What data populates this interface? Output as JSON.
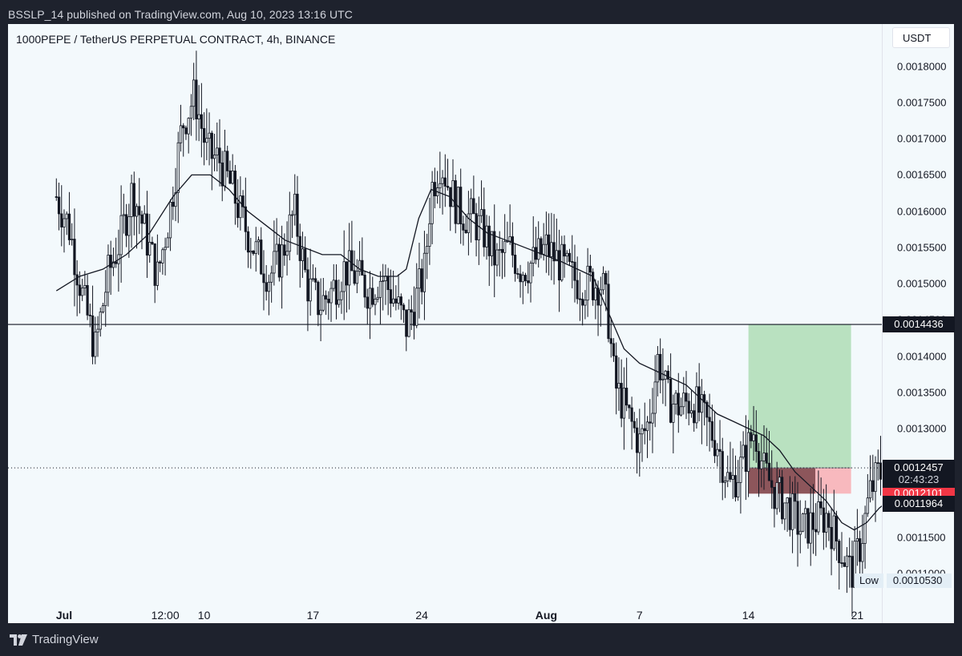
{
  "header": {
    "published_line": "BSSLP_14 published on TradingView.com, Aug 10, 2023 13:16 UTC"
  },
  "chart_data": {
    "type": "candlestick",
    "symbol_line": "1000PEPE / TetherUS PERPETUAL CONTRACT, 4h, BINANCE",
    "currency": "USDT",
    "y_ticks": [
      "0.0018000",
      "0.0017500",
      "0.0017000",
      "0.0016500",
      "0.0016000",
      "0.0015500",
      "0.0015000",
      "0.0014500",
      "0.0014000",
      "0.0013500",
      "0.0013000",
      "0.0012500",
      "0.0012000",
      "0.0011500",
      "0.0011000"
    ],
    "ylim": [
      0.0010313,
      0.0018583
    ],
    "x_ticks": [
      "Jul",
      "12:00",
      "10",
      "17",
      "24",
      "Aug",
      "7",
      "14",
      "21"
    ],
    "x_tick_day_index": [
      0,
      6.5,
      9,
      16,
      23,
      31,
      37,
      44,
      51
    ],
    "horizontal_level": 0.0014436,
    "horizontal_level_label": "0.0014436",
    "last_price_label": "0.0012457",
    "countdown": "02:43:23",
    "stop_price_label": "0.0012101",
    "moving_average_last_label": "0.0011964",
    "low_label": "Low",
    "low_value": "0.0010530",
    "position_tool": {
      "entry": 0.0012457,
      "target": 0.0014436,
      "stop": 0.0012101,
      "start_day": 44.0,
      "end_day": 50.6,
      "progress_end_day": 48.3,
      "target_color": "#b9e1c0",
      "stop_color": "#f8b9be",
      "filled_stop_color": "#8d565b"
    },
    "price_path": [
      [
        -0.5,
        0.00162
      ],
      [
        0.3,
        0.00158
      ],
      [
        1.2,
        0.00148
      ],
      [
        2.0,
        0.00141
      ],
      [
        2.8,
        0.00151
      ],
      [
        3.6,
        0.00156
      ],
      [
        4.4,
        0.00163
      ],
      [
        5.2,
        0.00157
      ],
      [
        6.0,
        0.00151
      ],
      [
        6.8,
        0.0016
      ],
      [
        7.6,
        0.00172
      ],
      [
        8.4,
        0.00176
      ],
      [
        9.2,
        0.00168
      ],
      [
        10.0,
        0.00167
      ],
      [
        10.8,
        0.00163
      ],
      [
        11.6,
        0.00158
      ],
      [
        12.4,
        0.00154
      ],
      [
        13.2,
        0.00151
      ],
      [
        14.0,
        0.00154
      ],
      [
        14.8,
        0.0016
      ],
      [
        15.6,
        0.0015
      ],
      [
        16.4,
        0.00147
      ],
      [
        17.2,
        0.00149
      ],
      [
        18.0,
        0.00152
      ],
      [
        18.8,
        0.00151
      ],
      [
        19.6,
        0.00149
      ],
      [
        20.4,
        0.00151
      ],
      [
        21.2,
        0.00148
      ],
      [
        22.0,
        0.00144
      ],
      [
        22.8,
        0.00149
      ],
      [
        23.2,
        0.00152
      ],
      [
        23.6,
        0.00163
      ],
      [
        24.2,
        0.00167
      ],
      [
        24.8,
        0.00163
      ],
      [
        25.4,
        0.0016
      ],
      [
        26.2,
        0.00159
      ],
      [
        27.0,
        0.00157
      ],
      [
        27.8,
        0.00153
      ],
      [
        28.6,
        0.00155
      ],
      [
        29.4,
        0.00152
      ],
      [
        30.2,
        0.00153
      ],
      [
        31.0,
        0.00155
      ],
      [
        31.8,
        0.00153
      ],
      [
        32.6,
        0.00151
      ],
      [
        33.2,
        0.0015
      ],
      [
        34.0,
        0.0015
      ],
      [
        34.6,
        0.0015
      ],
      [
        35.0,
        0.00145
      ],
      [
        35.4,
        0.00136
      ],
      [
        36.2,
        0.00132
      ],
      [
        37.0,
        0.00128
      ],
      [
        37.6,
        0.00131
      ],
      [
        38.2,
        0.0014
      ],
      [
        38.8,
        0.00134
      ],
      [
        39.6,
        0.00133
      ],
      [
        40.4,
        0.00134
      ],
      [
        41.2,
        0.00131
      ],
      [
        42.0,
        0.00128
      ],
      [
        42.8,
        0.00122
      ],
      [
        43.6,
        0.00125
      ],
      [
        44.4,
        0.0013
      ],
      [
        45.0,
        0.00124
      ],
      [
        45.8,
        0.00121
      ],
      [
        46.6,
        0.00119
      ],
      [
        47.4,
        0.00116
      ],
      [
        48.2,
        0.00117
      ],
      [
        49.0,
        0.00118
      ],
      [
        49.8,
        0.00114
      ],
      [
        50.6,
        0.0011
      ],
      [
        51.2,
        0.00114
      ],
      [
        51.8,
        0.00121
      ],
      [
        52.4,
        0.00124
      ],
      [
        52.9,
        0.00123
      ],
      [
        53.4,
        0.00124
      ]
    ],
    "ma_path": [
      [
        -0.5,
        0.00149
      ],
      [
        1.0,
        0.00151
      ],
      [
        2.5,
        0.00152
      ],
      [
        4.0,
        0.00154
      ],
      [
        5.5,
        0.00157
      ],
      [
        7.0,
        0.00162
      ],
      [
        8.2,
        0.00165
      ],
      [
        9.4,
        0.00165
      ],
      [
        10.6,
        0.00163
      ],
      [
        11.8,
        0.0016
      ],
      [
        13.0,
        0.00158
      ],
      [
        14.2,
        0.00156
      ],
      [
        15.4,
        0.00155
      ],
      [
        16.6,
        0.00154
      ],
      [
        17.8,
        0.00154
      ],
      [
        19.0,
        0.00152
      ],
      [
        20.2,
        0.00151
      ],
      [
        21.4,
        0.00151
      ],
      [
        22.0,
        0.00152
      ],
      [
        22.8,
        0.00159
      ],
      [
        23.6,
        0.00163
      ],
      [
        24.8,
        0.00162
      ],
      [
        26.0,
        0.00159
      ],
      [
        27.2,
        0.00157
      ],
      [
        28.4,
        0.00156
      ],
      [
        29.6,
        0.00155
      ],
      [
        30.8,
        0.00154
      ],
      [
        32.0,
        0.00153
      ],
      [
        33.0,
        0.00152
      ],
      [
        34.0,
        0.00151
      ],
      [
        35.0,
        0.00146
      ],
      [
        36.0,
        0.00141
      ],
      [
        37.0,
        0.00139
      ],
      [
        38.0,
        0.00138
      ],
      [
        39.0,
        0.00137
      ],
      [
        40.0,
        0.00136
      ],
      [
        41.0,
        0.00134
      ],
      [
        42.0,
        0.00132
      ],
      [
        43.0,
        0.00131
      ],
      [
        44.0,
        0.0013
      ],
      [
        45.0,
        0.00129
      ],
      [
        46.0,
        0.00127
      ],
      [
        47.0,
        0.00124
      ],
      [
        48.0,
        0.00122
      ],
      [
        49.0,
        0.0012
      ],
      [
        50.0,
        0.00117
      ],
      [
        50.8,
        0.00116
      ],
      [
        51.6,
        0.00117
      ],
      [
        52.4,
        0.00119
      ],
      [
        53.0,
        0.0012
      ]
    ]
  },
  "footer": {
    "brand": "TradingView"
  }
}
